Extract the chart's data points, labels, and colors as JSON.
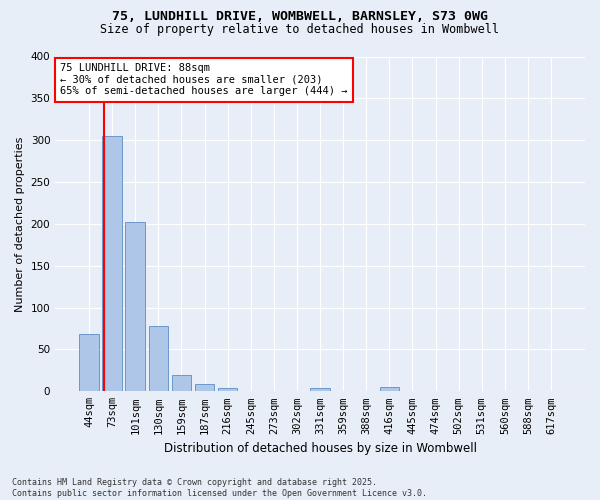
{
  "title_line1": "75, LUNDHILL DRIVE, WOMBWELL, BARNSLEY, S73 0WG",
  "title_line2": "Size of property relative to detached houses in Wombwell",
  "xlabel": "Distribution of detached houses by size in Wombwell",
  "ylabel": "Number of detached properties",
  "categories": [
    "44sqm",
    "73sqm",
    "101sqm",
    "130sqm",
    "159sqm",
    "187sqm",
    "216sqm",
    "245sqm",
    "273sqm",
    "302sqm",
    "331sqm",
    "359sqm",
    "388sqm",
    "416sqm",
    "445sqm",
    "474sqm",
    "502sqm",
    "531sqm",
    "560sqm",
    "588sqm",
    "617sqm"
  ],
  "bar_values": [
    68,
    305,
    202,
    78,
    20,
    9,
    4,
    0,
    0,
    0,
    4,
    0,
    0,
    5,
    0,
    0,
    0,
    0,
    0,
    0,
    0
  ],
  "bar_color": "#aec6e8",
  "bar_edge_color": "#5b8ec4",
  "background_color": "#e8eef7",
  "grid_color": "#ffffff",
  "vline_color": "red",
  "vline_x": 1.0,
  "annotation_text": "75 LUNDHILL DRIVE: 88sqm\n← 30% of detached houses are smaller (203)\n65% of semi-detached houses are larger (444) →",
  "annotation_box_color": "white",
  "annotation_box_edge": "red",
  "footnote_line1": "Contains HM Land Registry data © Crown copyright and database right 2025.",
  "footnote_line2": "Contains public sector information licensed under the Open Government Licence v3.0.",
  "ylim": [
    0,
    400
  ],
  "yticks": [
    0,
    50,
    100,
    150,
    200,
    250,
    300,
    350,
    400
  ],
  "title_fontsize": 9.5,
  "subtitle_fontsize": 8.5,
  "xlabel_fontsize": 8.5,
  "ylabel_fontsize": 8,
  "tick_fontsize": 7.5,
  "annot_fontsize": 7.5,
  "footnote_fontsize": 6
}
